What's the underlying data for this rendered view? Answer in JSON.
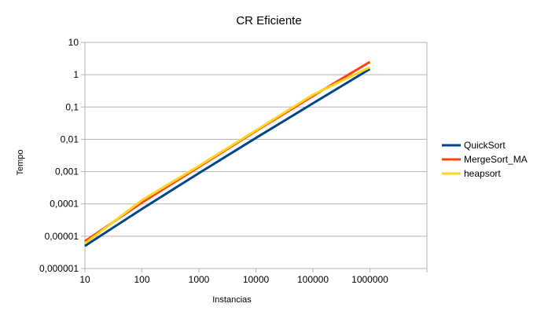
{
  "chart_data": {
    "type": "line",
    "title": "CR Eficiente",
    "xlabel": "Instancias",
    "ylabel": "Tempo",
    "x_scale": "log",
    "y_scale": "log",
    "xlim": [
      10,
      10000000
    ],
    "ylim": [
      1e-06,
      10
    ],
    "x_ticks": [
      "10",
      "100",
      "1000",
      "10000",
      "100000",
      "1000000"
    ],
    "x_tick_values": [
      10,
      100,
      1000,
      10000,
      100000,
      1000000
    ],
    "y_ticks": [
      "0,000001",
      "0,00001",
      "0,0001",
      "0,001",
      "0,01",
      "0,1",
      "1",
      "10"
    ],
    "y_tick_values": [
      1e-06,
      1e-05,
      0.0001,
      0.001,
      0.01,
      0.1,
      1,
      10
    ],
    "grid": "horizontal",
    "legend_position": "right",
    "x": [
      10,
      100,
      1000,
      10000,
      100000,
      1000000
    ],
    "series": [
      {
        "name": "QuickSort",
        "color": "#004586",
        "values": [
          5e-06,
          7e-05,
          0.0009,
          0.011,
          0.13,
          1.5
        ]
      },
      {
        "name": "MergeSort_MA",
        "color": "#ff420e",
        "values": [
          7e-06,
          0.00011,
          0.0014,
          0.018,
          0.22,
          2.5
        ]
      },
      {
        "name": "heapsort",
        "color": "#ffd320",
        "values": [
          6e-06,
          0.00013,
          0.0015,
          0.019,
          0.24,
          1.7
        ]
      }
    ]
  }
}
